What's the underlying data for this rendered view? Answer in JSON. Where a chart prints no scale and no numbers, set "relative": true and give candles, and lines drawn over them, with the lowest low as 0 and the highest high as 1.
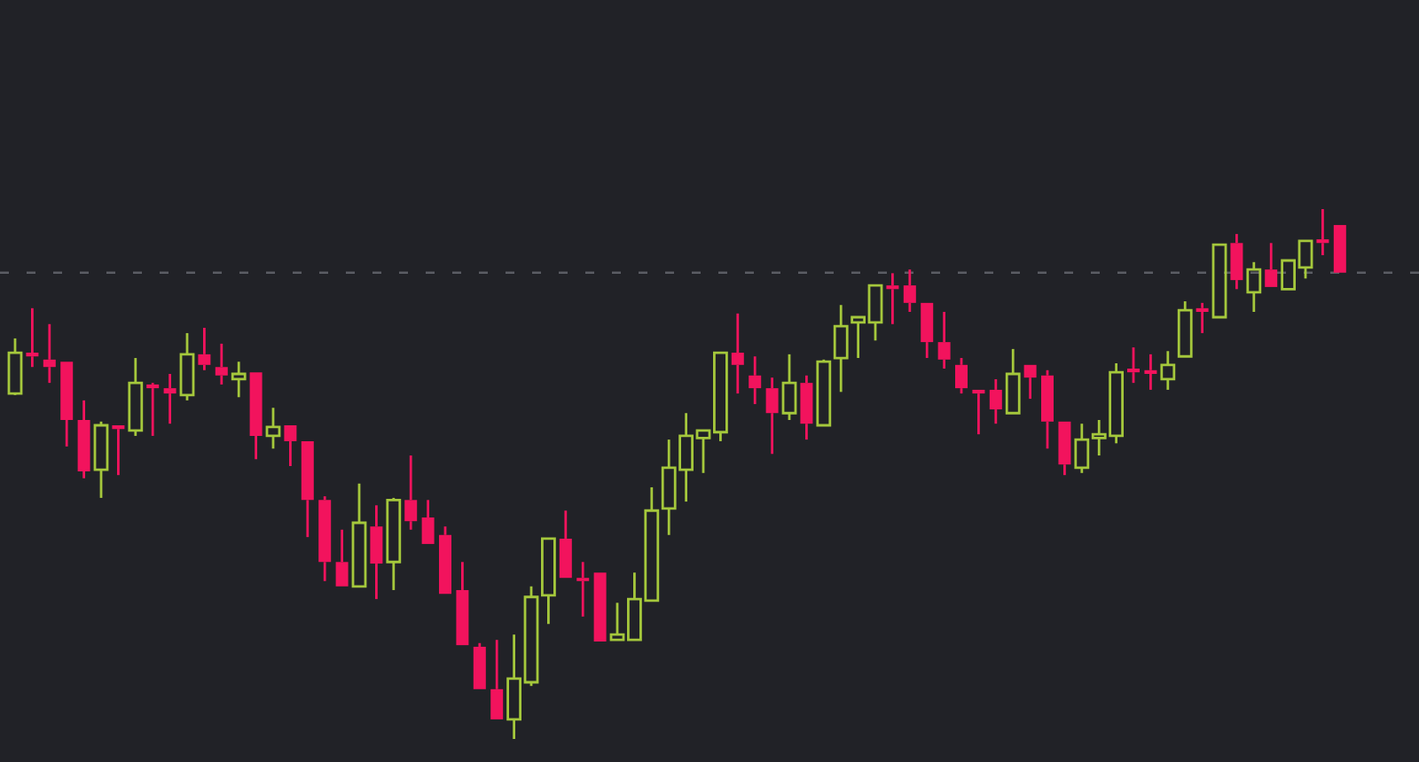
{
  "chart_data": {
    "type": "candlestick",
    "relative": true,
    "categories": [
      null,
      null,
      null,
      null,
      null,
      null,
      null,
      null,
      null,
      null,
      null,
      null,
      null,
      null,
      null,
      null,
      null,
      null,
      null,
      null,
      null,
      null,
      null,
      null,
      null,
      null,
      null,
      null,
      null,
      null,
      null,
      null,
      null,
      null,
      null,
      null,
      null,
      null,
      null,
      null,
      null,
      null,
      null,
      null,
      null,
      null,
      null,
      null,
      null,
      null,
      null,
      null,
      null,
      null,
      null,
      null,
      null,
      null,
      null,
      null,
      null,
      null,
      null,
      null,
      null,
      null,
      null,
      null,
      null,
      null,
      null,
      null,
      null,
      null,
      null,
      null,
      null,
      null
    ],
    "ohlc": [
      [
        0.652,
        0.756,
        0.649,
        0.729
      ],
      [
        0.729,
        0.813,
        0.702,
        0.722
      ],
      [
        0.716,
        0.783,
        0.672,
        0.702
      ],
      [
        0.712,
        0.712,
        0.552,
        0.602
      ],
      [
        0.602,
        0.639,
        0.492,
        0.505
      ],
      [
        0.508,
        0.599,
        0.455,
        0.592
      ],
      [
        0.592,
        0.592,
        0.498,
        0.585
      ],
      [
        0.582,
        0.719,
        0.572,
        0.672
      ],
      [
        0.669,
        0.672,
        0.572,
        0.662
      ],
      [
        0.662,
        0.689,
        0.595,
        0.652
      ],
      [
        0.649,
        0.766,
        0.639,
        0.726
      ],
      [
        0.726,
        0.776,
        0.696,
        0.706
      ],
      [
        0.702,
        0.746,
        0.669,
        0.686
      ],
      [
        0.679,
        0.712,
        0.645,
        0.689
      ],
      [
        0.692,
        0.692,
        0.528,
        0.572
      ],
      [
        0.572,
        0.625,
        0.548,
        0.589
      ],
      [
        0.592,
        0.592,
        0.515,
        0.562
      ],
      [
        0.562,
        0.562,
        0.381,
        0.451
      ],
      [
        0.451,
        0.458,
        0.298,
        0.334
      ],
      [
        0.334,
        0.395,
        0.288,
        0.288
      ],
      [
        0.288,
        0.482,
        0.288,
        0.408
      ],
      [
        0.401,
        0.441,
        0.264,
        0.331
      ],
      [
        0.334,
        0.455,
        0.281,
        0.451
      ],
      [
        0.451,
        0.535,
        0.395,
        0.411
      ],
      [
        0.418,
        0.451,
        0.368,
        0.368
      ],
      [
        0.385,
        0.401,
        0.274,
        0.274
      ],
      [
        0.281,
        0.334,
        0.177,
        0.177
      ],
      [
        0.174,
        0.181,
        0.094,
        0.094
      ],
      [
        0.094,
        0.187,
        0.037,
        0.037
      ],
      [
        0.037,
        0.197,
        0,
        0.114
      ],
      [
        0.107,
        0.288,
        0.1,
        0.268
      ],
      [
        0.271,
        0.378,
        0.217,
        0.378
      ],
      [
        0.378,
        0.431,
        0.304,
        0.304
      ],
      [
        0.304,
        0.334,
        0.231,
        0.298
      ],
      [
        0.314,
        0.314,
        0.184,
        0.184
      ],
      [
        0.187,
        0.257,
        0.187,
        0.197
      ],
      [
        0.187,
        0.314,
        0.187,
        0.264
      ],
      [
        0.261,
        0.475,
        0.261,
        0.431
      ],
      [
        0.435,
        0.565,
        0.385,
        0.512
      ],
      [
        0.508,
        0.615,
        0.448,
        0.572
      ],
      [
        0.568,
        0.582,
        0.502,
        0.582
      ],
      [
        0.579,
        0.729,
        0.562,
        0.729
      ],
      [
        0.729,
        0.803,
        0.652,
        0.706
      ],
      [
        0.686,
        0.722,
        0.632,
        0.662
      ],
      [
        0.662,
        0.682,
        0.538,
        0.615
      ],
      [
        0.615,
        0.726,
        0.602,
        0.672
      ],
      [
        0.672,
        0.686,
        0.565,
        0.595
      ],
      [
        0.592,
        0.716,
        0.592,
        0.712
      ],
      [
        0.719,
        0.819,
        0.655,
        0.779
      ],
      [
        0.786,
        0.796,
        0.719,
        0.796
      ],
      [
        0.786,
        0.856,
        0.752,
        0.856
      ],
      [
        0.856,
        0.879,
        0.783,
        0.849
      ],
      [
        0.856,
        0.886,
        0.806,
        0.823
      ],
      [
        0.823,
        0.823,
        0.719,
        0.749
      ],
      [
        0.749,
        0.806,
        0.699,
        0.716
      ],
      [
        0.706,
        0.719,
        0.652,
        0.662
      ],
      [
        0.659,
        0.659,
        0.575,
        0.652
      ],
      [
        0.659,
        0.679,
        0.595,
        0.622
      ],
      [
        0.615,
        0.736,
        0.615,
        0.689
      ],
      [
        0.706,
        0.706,
        0.642,
        0.682
      ],
      [
        0.686,
        0.696,
        0.548,
        0.599
      ],
      [
        0.599,
        0.599,
        0.498,
        0.518
      ],
      [
        0.512,
        0.595,
        0.502,
        0.565
      ],
      [
        0.568,
        0.602,
        0.535,
        0.575
      ],
      [
        0.572,
        0.709,
        0.558,
        0.692
      ],
      [
        0.699,
        0.739,
        0.672,
        0.692
      ],
      [
        0.696,
        0.726,
        0.659,
        0.689
      ],
      [
        0.679,
        0.732,
        0.659,
        0.706
      ],
      [
        0.722,
        0.826,
        0.722,
        0.809
      ],
      [
        0.813,
        0.823,
        0.766,
        0.806
      ],
      [
        0.796,
        0.933,
        0.796,
        0.933
      ],
      [
        0.936,
        0.953,
        0.849,
        0.866
      ],
      [
        0.843,
        0.9,
        0.806,
        0.886
      ],
      [
        0.886,
        0.936,
        0.853,
        0.853
      ],
      [
        0.849,
        0.903,
        0.849,
        0.903
      ],
      [
        0.89,
        0.94,
        0.869,
        0.94
      ],
      [
        0.943,
        1,
        0.913,
        0.936
      ],
      [
        0.97,
        0.97,
        0.88,
        0.88
      ]
    ],
    "colors": [
      "#a5c83c",
      "#f2135d",
      "#f2135d",
      "#f2135d",
      "#f2135d",
      "#a5c83c",
      "#f2135d",
      "#a5c83c",
      "#f2135d",
      "#f2135d",
      "#a5c83c",
      "#f2135d",
      "#f2135d",
      "#a5c83c",
      "#f2135d",
      "#a5c83c",
      "#f2135d",
      "#f2135d",
      "#f2135d",
      "#f2135d",
      "#a5c83c",
      "#f2135d",
      "#a5c83c",
      "#f2135d",
      "#f2135d",
      "#f2135d",
      "#f2135d",
      "#f2135d",
      "#f2135d",
      "#a5c83c",
      "#a5c83c",
      "#a5c83c",
      "#f2135d",
      "#f2135d",
      "#f2135d",
      "#a5c83c",
      "#a5c83c",
      "#a5c83c",
      "#a5c83c",
      "#a5c83c",
      "#a5c83c",
      "#a5c83c",
      "#f2135d",
      "#f2135d",
      "#f2135d",
      "#a5c83c",
      "#f2135d",
      "#a5c83c",
      "#a5c83c",
      "#a5c83c",
      "#a5c83c",
      "#f2135d",
      "#f2135d",
      "#f2135d",
      "#f2135d",
      "#f2135d",
      "#f2135d",
      "#f2135d",
      "#a5c83c",
      "#f2135d",
      "#f2135d",
      "#f2135d",
      "#a5c83c",
      "#a5c83c",
      "#a5c83c",
      "#f2135d",
      "#f2135d",
      "#a5c83c",
      "#a5c83c",
      "#f2135d",
      "#a5c83c",
      "#f2135d",
      "#a5c83c",
      "#f2135d",
      "#a5c83c",
      "#a5c83c",
      "#f2135d",
      "#f2135d"
    ],
    "ref_lines": [
      {
        "axis": "y",
        "value": 0.88,
        "line_style": "dashed",
        "color": "#5b5d64"
      }
    ]
  }
}
